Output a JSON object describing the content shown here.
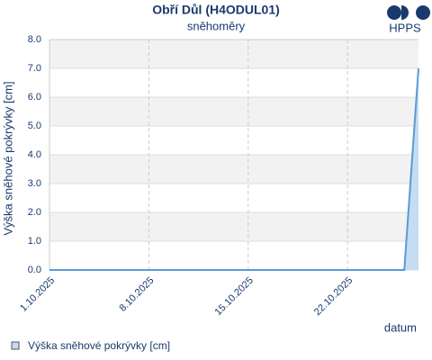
{
  "chart_data": {
    "type": "area",
    "title": "Obří Důl (H4ODUL01)",
    "subtitle": "sněhoměry",
    "logo": "HPPS",
    "y_label": "Výška sněhové pokrývky [cm]",
    "x_label": "datum",
    "x": [
      "1.10.2025",
      "2.10.2025",
      "3.10.2025",
      "4.10.2025",
      "5.10.2025",
      "6.10.2025",
      "7.10.2025",
      "8.10.2025",
      "9.10.2025",
      "10.10.2025",
      "11.10.2025",
      "12.10.2025",
      "13.10.2025",
      "14.10.2025",
      "15.10.2025",
      "16.10.2025",
      "17.10.2025",
      "18.10.2025",
      "19.10.2025",
      "20.10.2025",
      "21.10.2025",
      "22.10.2025",
      "23.10.2025",
      "24.10.2025",
      "25.10.2025",
      "26.10.2025",
      "27.10.2025"
    ],
    "series": [
      {
        "name": "Výška sněhové pokrývky [cm]",
        "color": "#5b9bd5",
        "values": [
          0,
          0,
          0,
          0,
          0,
          0,
          0,
          0,
          0,
          0,
          0,
          0,
          0,
          0,
          0,
          0,
          0,
          0,
          0,
          0,
          0,
          0,
          0,
          0,
          0,
          0,
          7.0
        ]
      }
    ],
    "xlim": [
      "1.10.2025",
      "27.10.2025"
    ],
    "xticks": [
      "1.10.2025",
      "8.10.2025",
      "15.10.2025",
      "22.10.2025"
    ],
    "ylim": [
      0,
      8
    ],
    "yticks": [
      {
        "value": 0,
        "label": "0.0"
      },
      {
        "value": 1,
        "label": "1.0"
      },
      {
        "value": 2,
        "label": "2.0"
      },
      {
        "value": 3,
        "label": "3.0"
      },
      {
        "value": 4,
        "label": "4.0"
      },
      {
        "value": 5,
        "label": "5.0"
      },
      {
        "value": 6,
        "label": "6.0"
      },
      {
        "value": 7,
        "label": "7.0"
      },
      {
        "value": 8,
        "label": "8.0"
      }
    ],
    "grid": true
  }
}
